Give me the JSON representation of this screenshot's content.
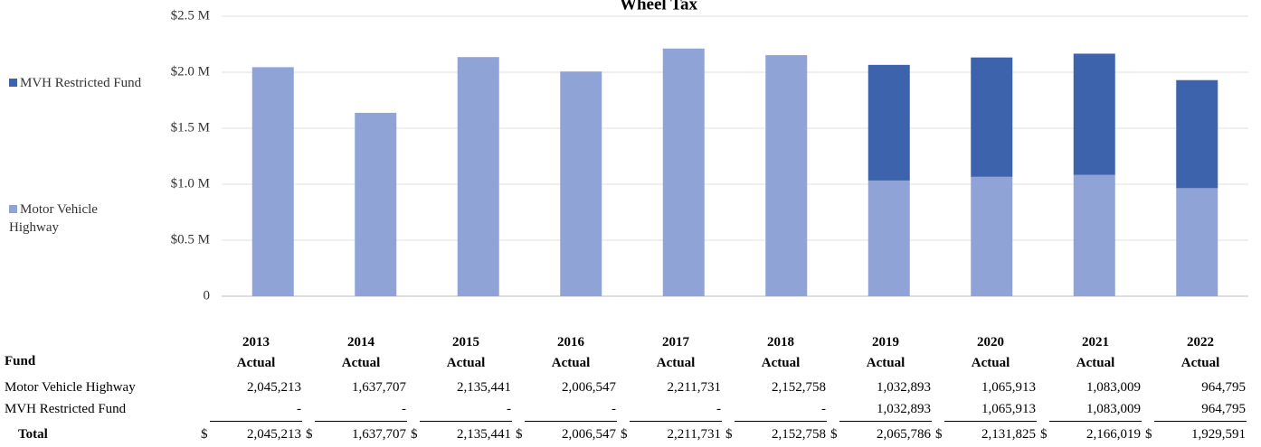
{
  "chart_data": {
    "type": "stacked_bar",
    "title": "Wheel Tax",
    "categories": [
      "2013",
      "2014",
      "2015",
      "2016",
      "2017",
      "2018",
      "2019",
      "2020",
      "2021",
      "2022"
    ],
    "series": [
      {
        "name": "Motor Vehicle Highway",
        "color": "#8fa3d6",
        "values": [
          2045213,
          1637707,
          2135441,
          2006547,
          2211731,
          2152758,
          1032893,
          1065913,
          1083009,
          964795
        ],
        "value_labels": [
          "2,045,213",
          "1,637,707",
          "2,135,441",
          "2,006,547",
          "2,211,731",
          "2,152,758",
          "1,032,893",
          "1,065,913",
          "1,083,009",
          "964,795"
        ]
      },
      {
        "name": "MVH Restricted Fund",
        "color": "#3c63ac",
        "values": [
          0,
          0,
          0,
          0,
          0,
          0,
          1032893,
          1065913,
          1083009,
          964795
        ],
        "value_labels": [
          "-",
          "-",
          "-",
          "-",
          "-",
          "-",
          "1,032,893",
          "1,065,913",
          "1,083,009",
          "964,795"
        ]
      }
    ],
    "ylim": [
      0,
      2500000
    ],
    "yticks": [
      0,
      {
        "value": 500000,
        "label": "$0.5 M"
      },
      {
        "value": 1000000,
        "label": "$1.0 M"
      },
      {
        "value": 1500000,
        "label": "$1.5 M"
      },
      {
        "value": 2000000,
        "label": "$2.0 M"
      },
      {
        "value": 2500000,
        "label": "$2.5 M"
      }
    ],
    "grid": true,
    "legend": "left"
  },
  "table": {
    "header": "Fund",
    "period_label": "Actual",
    "currency_symbol": "$",
    "total_label": "Total",
    "totals": [
      "2,045,213",
      "1,637,707",
      "2,135,441",
      "2,006,547",
      "2,211,731",
      "2,152,758",
      "2,065,786",
      "2,131,825",
      "2,166,019",
      "1,929,591"
    ]
  }
}
